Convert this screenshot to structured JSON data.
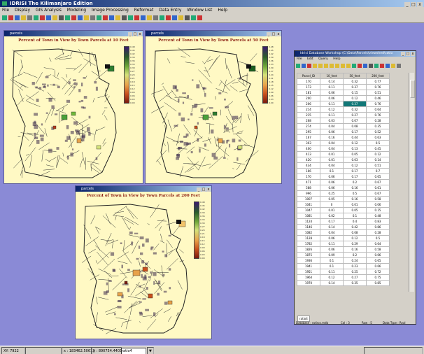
{
  "app": {
    "title": "IDRISI  The Kilimanjaro Edition",
    "menu": [
      "File",
      "Display",
      "GIS Analysis",
      "Modeling",
      "Image Processing",
      "Reformat",
      "Data Entry",
      "Window List",
      "Help"
    ],
    "window_buttons": [
      "_",
      "□",
      "x"
    ]
  },
  "maps": [
    {
      "window_title": "parcels",
      "title": "Percent of Town in View by Town Parcels at 10 Feet"
    },
    {
      "window_title": "parcels",
      "title": "Percent of Town in View by Town Parcels at 50 Feet"
    },
    {
      "window_title": "parcels",
      "title": "Percent of Town in View by Town Parcels at 200 Feet"
    }
  ],
  "legend_labels": [
    "0.48",
    "0.45",
    "0.42",
    "0.39",
    "0.36",
    "0.33",
    "0.30",
    "0.27",
    "0.24",
    "0.21",
    "0.18",
    "0.15",
    "0.12",
    "0.09",
    "0.06",
    "0.03",
    "0.00"
  ],
  "database": {
    "window_title": "Idrisi Database Workshop (C:\\Data\\Parcels\\viewshed\\ratio",
    "menu": [
      "File",
      "Edit",
      "Query",
      "Help"
    ],
    "columns": [
      "Parcel_ID",
      "10_feet",
      "50_feet",
      "200_feet"
    ],
    "rows": [
      [
        "170",
        "0.14",
        "0.32",
        "0.77"
      ],
      [
        "173",
        "0.11",
        "0.37",
        "0.76"
      ],
      [
        "181",
        "0.06",
        "0.15",
        "0.51"
      ],
      [
        "200",
        "0.06",
        "0.12",
        "0.46"
      ],
      [
        "206",
        "0.11",
        "0.37",
        "0.76"
      ],
      [
        "214",
        "0.12",
        "0.32",
        "0.64"
      ],
      [
        "215",
        "0.11",
        "0.27",
        "0.76"
      ],
      [
        "268",
        "0.03",
        "0.07",
        "0.28"
      ],
      [
        "274",
        "0.04",
        "0.08",
        "0.35"
      ],
      [
        "295",
        "0.06",
        "0.17",
        "0.52"
      ],
      [
        "167",
        "0.16",
        "0.44",
        "0.63"
      ],
      [
        "303",
        "0.04",
        "0.12",
        "0.5"
      ],
      [
        "400",
        "0.04",
        "0.13",
        "0.45"
      ],
      [
        "413",
        "0.01",
        "0.05",
        "0.12"
      ],
      [
        "420",
        "0.01",
        "0.03",
        "0.14"
      ],
      [
        "434",
        "0.04",
        "0.12",
        "0.51"
      ],
      [
        "166",
        "0.1",
        "0.17",
        "0.7"
      ],
      [
        "170",
        "0.06",
        "0.17",
        "0.65"
      ],
      [
        "471",
        "0.06",
        "0.2",
        "0.67"
      ],
      [
        "588",
        "0.06",
        "0.16",
        "0.61"
      ],
      [
        "996",
        "0.25",
        "0.5",
        "0.67"
      ],
      [
        "1007",
        "0.05",
        "0.16",
        "0.58"
      ],
      [
        "1041",
        "0",
        "0.01",
        "0.06"
      ],
      [
        "1047",
        "0.01",
        "0.05",
        "0.15"
      ],
      [
        "1081",
        "0.02",
        "0.1",
        "0.48"
      ],
      [
        "1124",
        "0.17",
        "0.4",
        "0.83"
      ],
      [
        "1146",
        "0.14",
        "0.42",
        "0.86"
      ],
      [
        "1082",
        "0.04",
        "0.08",
        "0.28"
      ],
      [
        "1128",
        "0.06",
        "0.12",
        "0.5"
      ],
      [
        "1782",
        "0.11",
        "0.29",
        "0.64"
      ],
      [
        "1826",
        "0.06",
        "0.16",
        "0.58"
      ],
      [
        "1875",
        "0.09",
        "0.2",
        "0.66"
      ],
      [
        "1936",
        "0.1",
        "0.24",
        "0.65"
      ],
      [
        "1941",
        "0.1",
        "0.23",
        "0.66"
      ],
      [
        "1951",
        "0.11",
        "0.25",
        "0.72"
      ],
      [
        "1964",
        "0.12",
        "0.27",
        "0.75"
      ],
      [
        "1970",
        "0.14",
        "0.35",
        "0.85"
      ]
    ],
    "sheet_tab": "ratio4",
    "status": {
      "database": "Database : ratiros.mdb",
      "col": "Col : 3",
      "row": "Row : 5",
      "data_type": "Data Type : Real"
    }
  },
  "status": {
    "coords": "XY: 7922",
    "x": "x : 183462.50613",
    "y": "y : 890754.44038",
    "combo_value": "ratio4"
  }
}
